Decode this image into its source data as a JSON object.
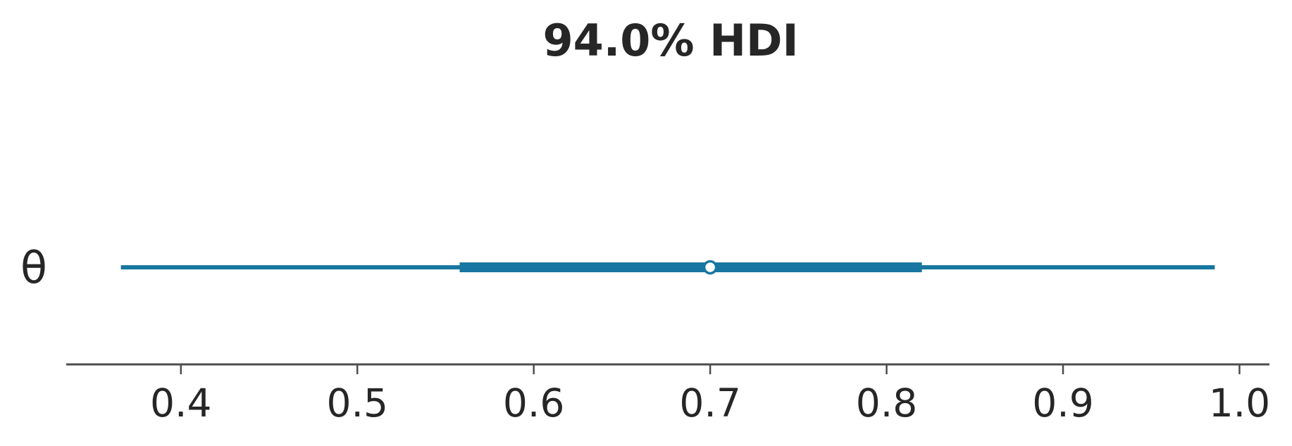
{
  "chart_data": {
    "type": "forest",
    "title": "94.0% HDI",
    "variables": [
      {
        "label": "θ",
        "hdi_94": [
          0.366,
          0.986
        ],
        "iqr": [
          0.558,
          0.82
        ],
        "median": 0.7
      }
    ],
    "xlim": [
      0.335,
      1.017
    ],
    "xticks": [
      0.4,
      0.5,
      0.6,
      0.7,
      0.8,
      0.9,
      1.0
    ],
    "xtick_labels": [
      "0.4",
      "0.5",
      "0.6",
      "0.7",
      "0.8",
      "0.9",
      "1.0"
    ],
    "xlabel": "",
    "ylabel": "",
    "grid": false,
    "legend": false,
    "colors": {
      "series": "#1777a0",
      "axis": "#4d4d4d",
      "text": "#262626",
      "marker_fill": "#ffffff"
    }
  }
}
